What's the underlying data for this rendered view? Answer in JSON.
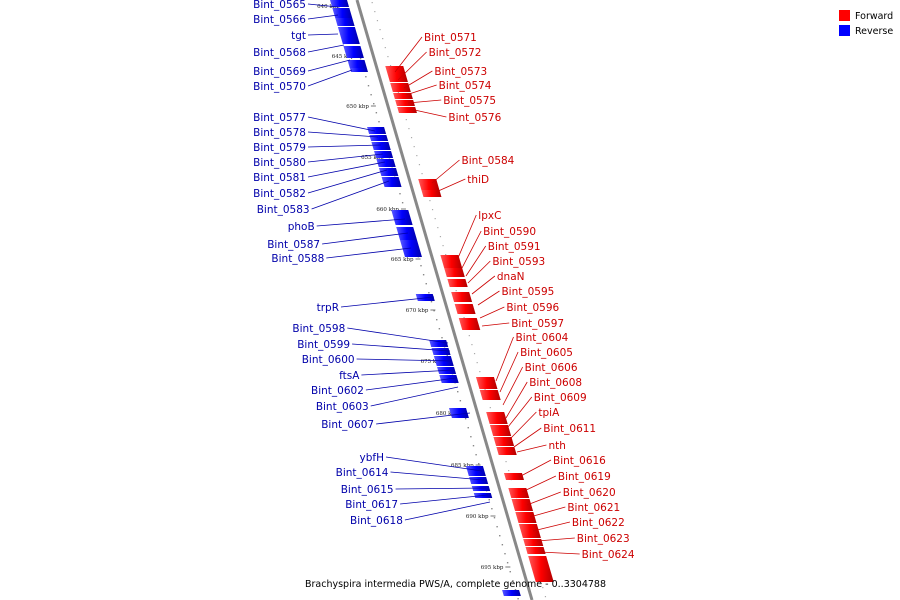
{
  "legend": {
    "forward_label": "Forward",
    "reverse_label": "Reverse",
    "forward_color": "#ff0000",
    "reverse_color": "#0000ff"
  },
  "caption": "Brachyspira intermedia PWS/A, complete genome - 0..3304788",
  "colors": {
    "forward_label_color": "#cc0000",
    "reverse_label_color": "#0000aa",
    "backbone": "#888888"
  },
  "ticks": [
    "640 kbp",
    "645 kbp",
    "650 kbp",
    "655 kbp",
    "660 kbp",
    "665 kbp",
    "670 kbp",
    "675 kbp",
    "680 kbp",
    "685 kbp",
    "690 kbp",
    "695 kbp"
  ],
  "reverse_genes": [
    "Bint_0565",
    "Bint_0566",
    "tgt",
    "Bint_0568",
    "Bint_0569",
    "Bint_0570",
    "Bint_0577",
    "Bint_0578",
    "Bint_0579",
    "Bint_0580",
    "Bint_0581",
    "Bint_0582",
    "Bint_0583",
    "phoB",
    "Bint_0587",
    "Bint_0588",
    "trpR",
    "Bint_0598",
    "Bint_0599",
    "Bint_0600",
    "ftsA",
    "Bint_0602",
    "Bint_0603",
    "Bint_0607",
    "ybfH",
    "Bint_0614",
    "Bint_0615",
    "Bint_0617",
    "Bint_0618"
  ],
  "forward_genes": [
    "Bint_0571",
    "Bint_0572",
    "Bint_0573",
    "Bint_0574",
    "Bint_0575",
    "Bint_0576",
    "Bint_0584",
    "thiD",
    "lpxC",
    "Bint_0590",
    "Bint_0591",
    "Bint_0593",
    "dnaN",
    "Bint_0595",
    "Bint_0596",
    "Bint_0597",
    "Bint_0604",
    "Bint_0605",
    "Bint_0606",
    "Bint_0608",
    "Bint_0609",
    "tpiA",
    "Bint_0611",
    "nth",
    "Bint_0616",
    "Bint_0619",
    "Bint_0620",
    "Bint_0621",
    "Bint_0622",
    "Bint_0623",
    "Bint_0624"
  ]
}
